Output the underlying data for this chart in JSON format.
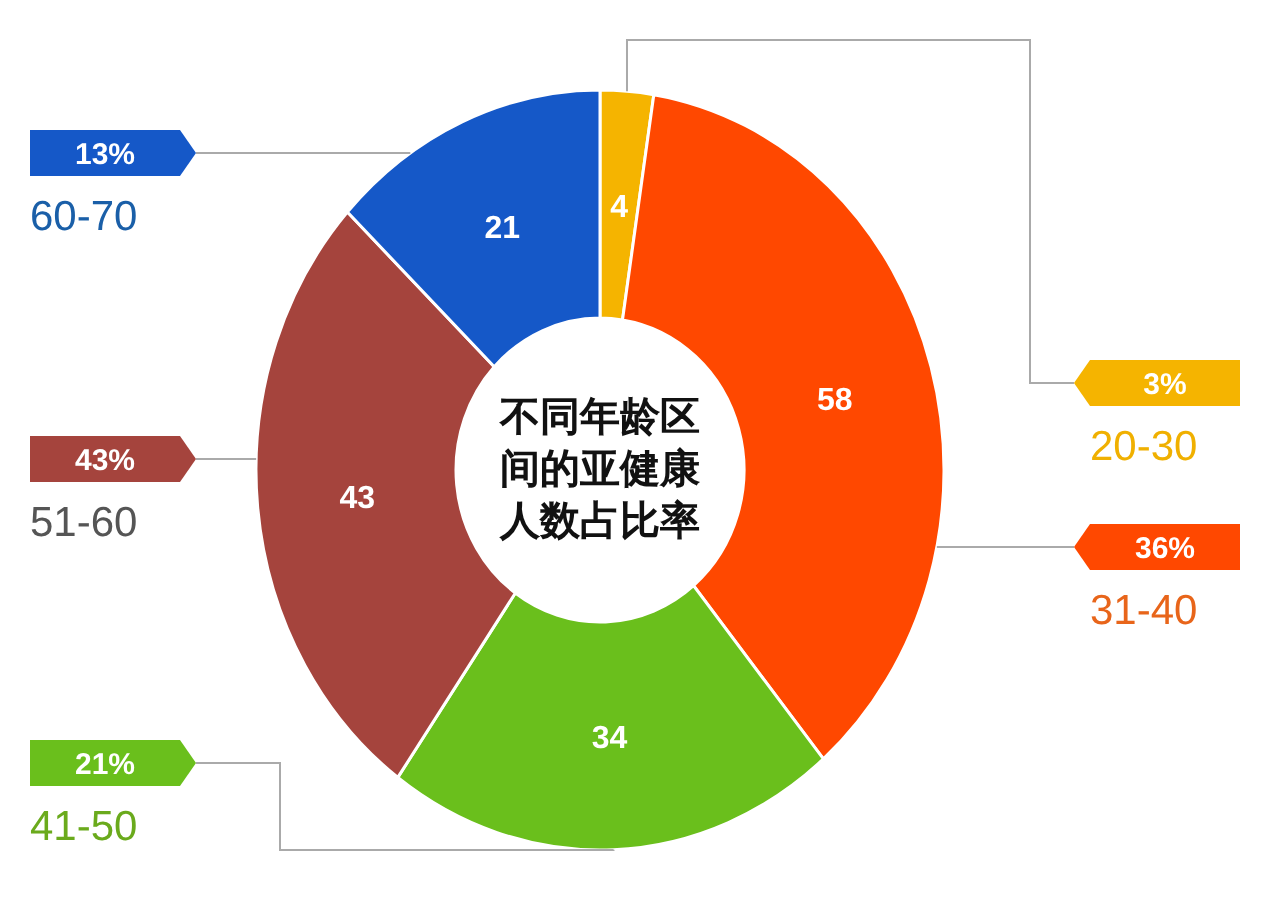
{
  "chart_data": {
    "type": "donut",
    "title": "不同年龄区间的亚健康人数占比率",
    "categories": [
      "20-30",
      "31-40",
      "41-50",
      "51-60",
      "60-70"
    ],
    "values": [
      4,
      58,
      34,
      43,
      21
    ],
    "colors": [
      "#f5b400",
      "#ff4800",
      "#6abf1c",
      "#a5443d",
      "#1558c8"
    ],
    "data_labels": true,
    "legend": "bottom right",
    "annotations": [
      {
        "text": "3%",
        "x": "20-30"
      },
      {
        "text": "36%",
        "x": "31-40"
      },
      {
        "text": "21%",
        "x": "41-50"
      },
      {
        "text": "43%",
        "x": "51-60"
      },
      {
        "text": "13%",
        "x": "60-70"
      }
    ]
  }
}
